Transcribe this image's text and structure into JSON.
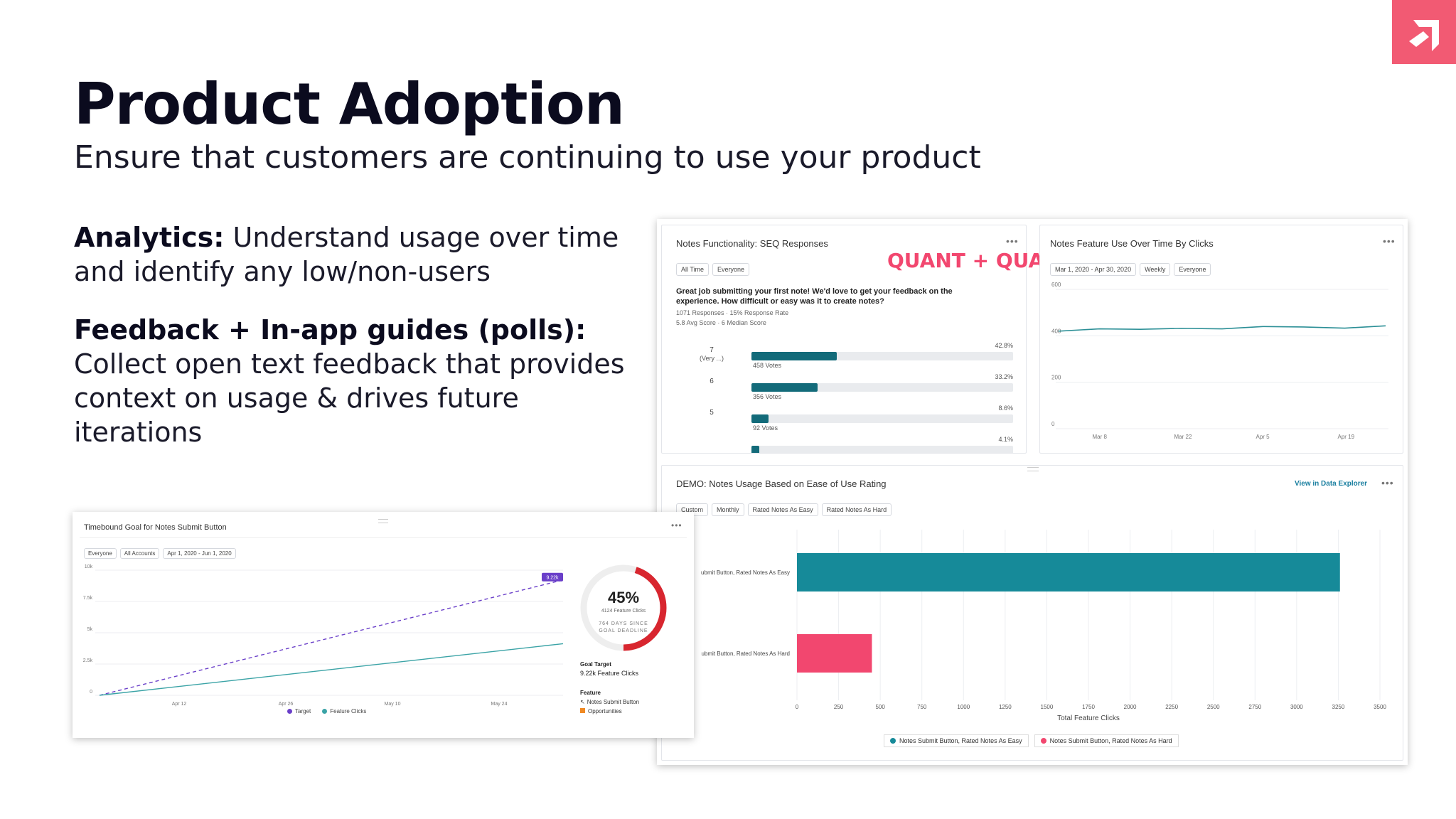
{
  "slide": {
    "title": "Product Adoption",
    "subtitle": "Ensure that customers are continuing to use your product",
    "analytics_heading": "Analytics:",
    "analytics_text": " Understand usage over time and identify any low/non-users",
    "feedback_heading": "Feedback + In-app guides (polls):",
    "feedback_text": "Collect open text feedback that provides context on usage & drives future iterations",
    "annotation": "QUANT + QUAL",
    "brand_color": "#f25a73",
    "logo_icon": "arrow-logo-icon"
  },
  "seq_panel": {
    "title": "Notes Functionality: SEQ Responses",
    "filters": [
      "All Time",
      "Everyone"
    ],
    "question": "Great job submitting your first note! We'd love to get your feedback on the experience. How difficult or easy was it to create notes?",
    "stats_line1": "1071 Responses · 15% Response Rate",
    "stats_line2": "5.8 Avg Score · 6 Median Score",
    "rows": [
      {
        "label": "7",
        "sublabel": "(Very ...)",
        "pct": "42.8%",
        "votes": "458 Votes",
        "fraction": 0.428
      },
      {
        "label": "6",
        "sublabel": "",
        "pct": "33.2%",
        "votes": "356 Votes",
        "fraction": 0.332
      },
      {
        "label": "5",
        "sublabel": "",
        "pct": "8.6%",
        "votes": "92 Votes",
        "fraction": 0.086
      },
      {
        "label": "",
        "sublabel": "",
        "pct": "4.1%",
        "votes": "",
        "fraction": 0.041
      }
    ],
    "bar_color": "#136b7a"
  },
  "clicks_panel": {
    "title": "Notes Feature Use Over Time By Clicks",
    "filters": [
      "Mar 1, 2020 - Apr 30, 2020",
      "Weekly",
      "Everyone"
    ],
    "line_color": "#2b8f96"
  },
  "demo_panel": {
    "title": "DEMO: Notes Usage Based on Ease of Use Rating",
    "link": "View in Data Explorer",
    "filters": [
      "Custom",
      "Monthly",
      "Rated Notes As Easy",
      "Rated Notes As Hard"
    ],
    "xlabel": "Total Feature Clicks",
    "cat_labels": [
      "ubmit Button, Rated Notes As Easy",
      "ubmit Button, Rated Notes As Hard"
    ],
    "legend": [
      "Notes Submit Button, Rated Notes As Easy",
      "Notes Submit Button, Rated Notes As Hard"
    ],
    "colors": [
      "#168a99",
      "#f2476f"
    ]
  },
  "goal_panel": {
    "title": "Timebound Goal for Notes Submit Button",
    "filters": [
      "Everyone",
      "All Accounts",
      "Apr 1, 2020 - Jun 1, 2020"
    ],
    "badge": "9.22k",
    "legend": [
      "Target",
      "Feature Clicks"
    ],
    "donut_pct": "45%",
    "donut_progress": 0.45,
    "donut_sub": "4124 Feature Clicks",
    "donut_note_1": "764 DAYS SINCE",
    "donut_note_2": "GOAL DEADLINE",
    "goal_target_label": "Goal Target",
    "goal_target_value": "9.22k Feature Clicks",
    "feature_label": "Feature",
    "feature_item_1": "Notes Submit Button",
    "feature_item_2": "Opportunities",
    "target_color": "#6a3fc9",
    "clicks_color": "#3aa3a6",
    "donut_color": "#d8262f"
  },
  "chart_data": [
    {
      "type": "bar",
      "title": "Notes Functionality: SEQ Responses",
      "categories": [
        "7 (Very ...)",
        "6",
        "5",
        ""
      ],
      "values": [
        42.8,
        33.2,
        8.6,
        4.1
      ],
      "votes": [
        458,
        356,
        92,
        null
      ]
    },
    {
      "type": "line",
      "title": "Notes Feature Use Over Time By Clicks",
      "x": [
        "Mar 1",
        "Mar 8",
        "Mar 15",
        "Mar 22",
        "Mar 29",
        "Apr 5",
        "Apr 12",
        "Apr 19",
        "Apr 26"
      ],
      "tick_labels_x": [
        "Mar 8",
        "Mar 22",
        "Apr 5",
        "Apr 19"
      ],
      "tick_labels_y": [
        "0",
        "200",
        "400",
        "600"
      ],
      "series": [
        {
          "values": [
            420,
            430,
            428,
            432,
            430,
            440,
            438,
            433,
            443
          ]
        }
      ],
      "ylim": [
        0,
        600
      ]
    },
    {
      "type": "bar",
      "orientation": "horizontal",
      "title": "DEMO: Notes Usage Based on Ease of Use Rating",
      "categories": [
        "Notes Submit Button, Rated Notes As Easy",
        "Notes Submit Button, Rated Notes As Hard"
      ],
      "values": [
        3260,
        450
      ],
      "xlabel": "Total Feature Clicks",
      "xlim": [
        0,
        3500
      ],
      "tick_labels_x": [
        "0",
        "250",
        "500",
        "750",
        "1000",
        "1250",
        "1500",
        "1750",
        "2000",
        "2250",
        "2500",
        "2750",
        "3000",
        "3250",
        "3500"
      ]
    },
    {
      "type": "line",
      "title": "Timebound Goal for Notes Submit Button",
      "tick_labels_x": [
        "Apr 12",
        "Apr 26",
        "May 10",
        "May 24"
      ],
      "tick_labels_y": [
        "0",
        "2.5k",
        "5k",
        "7.5k",
        "10k"
      ],
      "ylim": [
        0,
        10000
      ],
      "series": [
        {
          "name": "Target",
          "start": 0,
          "end": 9220
        },
        {
          "name": "Feature Clicks",
          "start": 0,
          "end": 4124
        }
      ]
    }
  ]
}
